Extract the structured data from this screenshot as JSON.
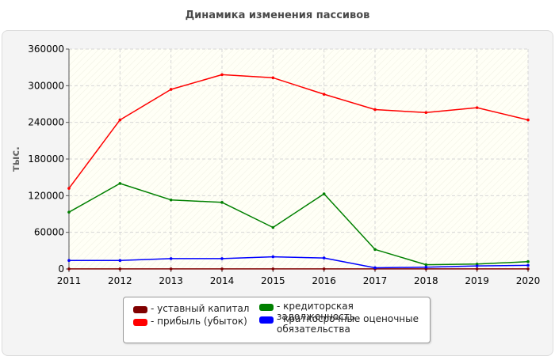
{
  "chart_data": {
    "type": "line",
    "title": "Динамика изменения пассивов",
    "ylabel": "тыс.",
    "xlabel": "",
    "x": [
      "2011",
      "2012",
      "2013",
      "2014",
      "2015",
      "2016",
      "2017",
      "2018",
      "2019",
      "2020"
    ],
    "ylim": [
      0,
      360000
    ],
    "yticks": [
      "0",
      "60000",
      "120000",
      "180000",
      "240000",
      "300000",
      "360000"
    ],
    "yticks_values": [
      0,
      60000,
      120000,
      180000,
      240000,
      300000,
      360000
    ],
    "grid": true,
    "legend_position": "bottom",
    "series": [
      {
        "name": "уставный капитал",
        "color": "#800000",
        "values": [
          100,
          100,
          100,
          100,
          100,
          100,
          100,
          100,
          100,
          100
        ]
      },
      {
        "name": "прибыль (убыток)",
        "color": "#ff0000",
        "values": [
          132000,
          244000,
          294000,
          318000,
          313000,
          286000,
          261000,
          256000,
          264000,
          244000
        ]
      },
      {
        "name": "кредиторская задолженность",
        "color": "#008000",
        "values": [
          93000,
          140000,
          113000,
          109000,
          68000,
          123000,
          32000,
          7000,
          8000,
          12000
        ]
      },
      {
        "name": "краткосрочные оценочные обязательства",
        "color": "#0000ff",
        "values": [
          14000,
          14000,
          17000,
          17000,
          20000,
          18000,
          2000,
          3000,
          5000,
          6000
        ]
      }
    ]
  }
}
